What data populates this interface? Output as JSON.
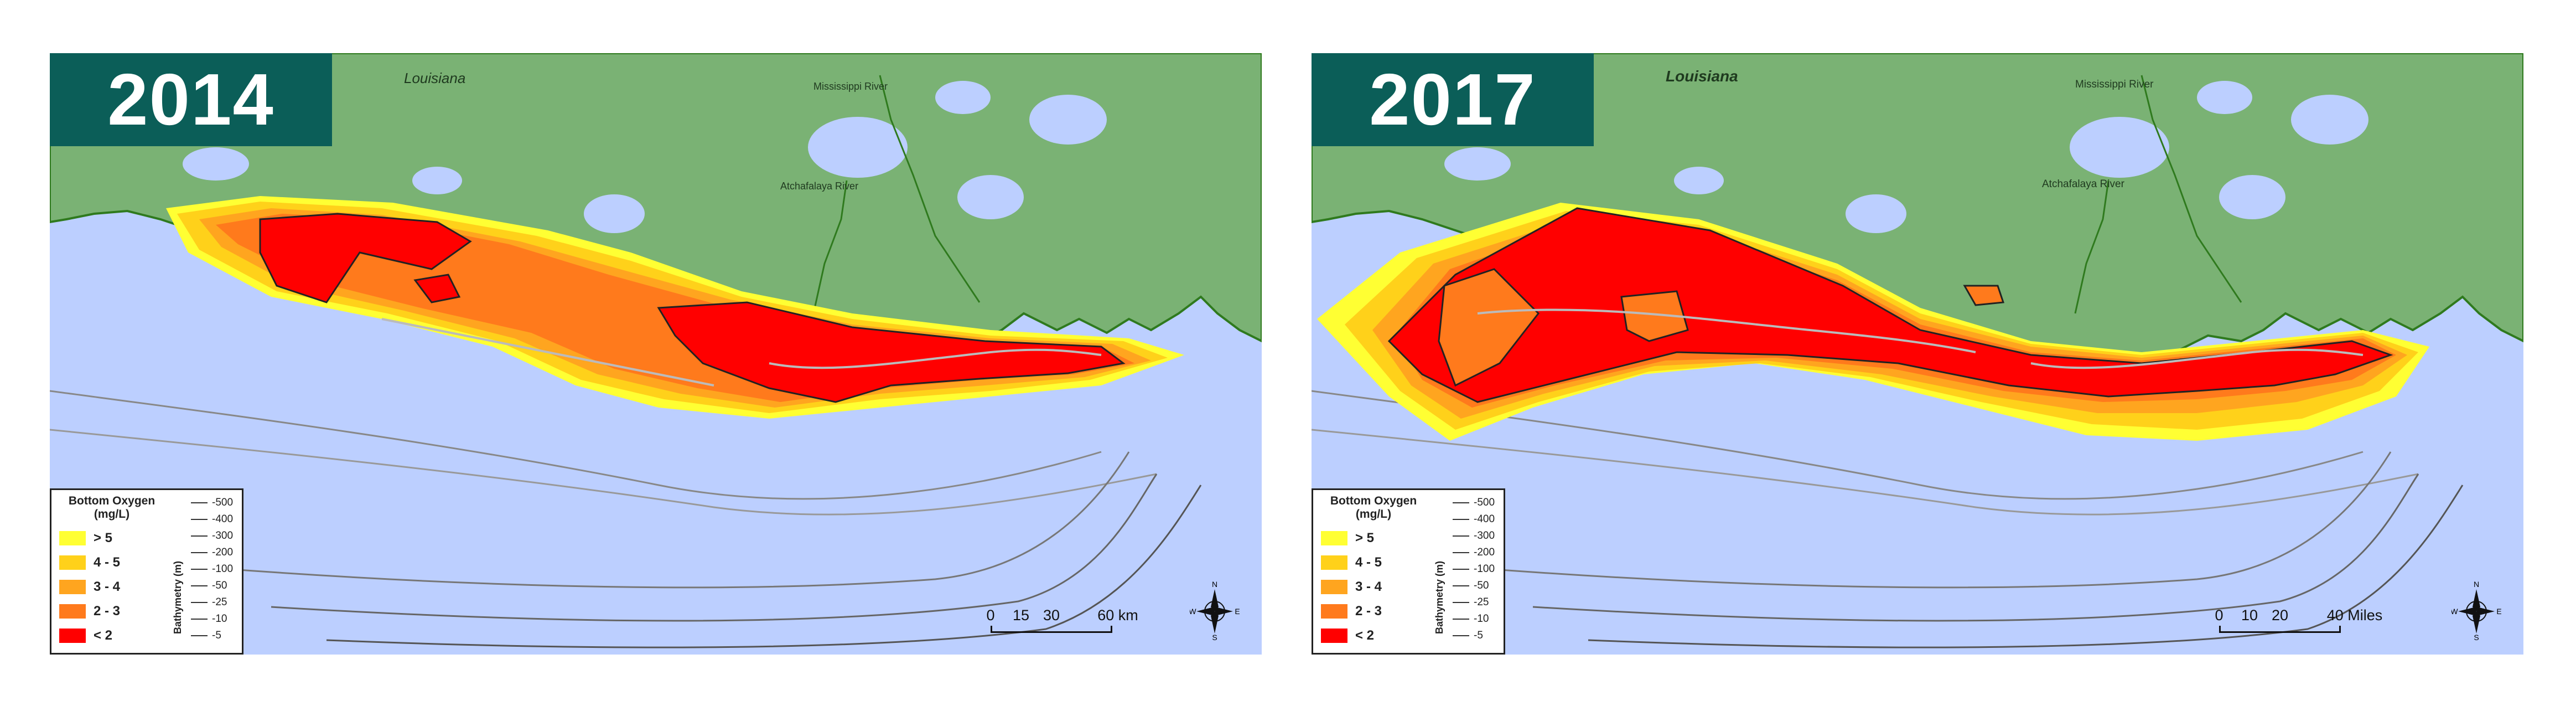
{
  "colors": {
    "land": "#7ab274",
    "land_edge": "#2f7a1e",
    "water": "#bccfff",
    "badge": "#0b5e58",
    "oxygen_gt5": "#ffff33",
    "oxygen_4_5": "#ffd11a",
    "oxygen_3_4": "#ffa51f",
    "oxygen_2_3": "#ff7a1c",
    "oxygen_lt2": "#ff0000"
  },
  "panels": [
    {
      "year": "2014",
      "state_label": "Louisiana",
      "river_labels": [
        "Mississippi River",
        "Atchafalaya River"
      ],
      "legend": {
        "title": "Bottom Oxygen",
        "unit": "(mg/L)",
        "oxygen_classes": [
          {
            "label": "> 5",
            "color": "#ffff33"
          },
          {
            "label": "4 - 5",
            "color": "#ffd11a"
          },
          {
            "label": "3 - 4",
            "color": "#ffa51f"
          },
          {
            "label": "2 - 3",
            "color": "#ff7a1c"
          },
          {
            "label": "< 2",
            "color": "#ff0000"
          }
        ],
        "bathymetry_axis": "Bathymetry (m)",
        "bathymetry_values": [
          "-500",
          "-400",
          "-300",
          "-200",
          "-100",
          "-50",
          "-25",
          "-10",
          "-5"
        ]
      },
      "scale_bar": {
        "ticks": [
          "0",
          "15",
          "30",
          "60 km"
        ]
      },
      "compass": {
        "n": "N",
        "s": "S",
        "e": "E",
        "w": "W"
      }
    },
    {
      "year": "2017",
      "state_label": "Louisiana",
      "river_labels": [
        "Mississippi River",
        "Atchafalaya River"
      ],
      "legend": {
        "title": "Bottom Oxygen",
        "unit": "(mg/L)",
        "oxygen_classes": [
          {
            "label": "> 5",
            "color": "#ffff33"
          },
          {
            "label": "4 - 5",
            "color": "#ffd11a"
          },
          {
            "label": "3 - 4",
            "color": "#ffa51f"
          },
          {
            "label": "2 - 3",
            "color": "#ff7a1c"
          },
          {
            "label": "< 2",
            "color": "#ff0000"
          }
        ],
        "bathymetry_axis": "Bathymetry (m)",
        "bathymetry_values": [
          "-500",
          "-400",
          "-300",
          "-200",
          "-100",
          "-50",
          "-25",
          "-10",
          "-5"
        ]
      },
      "scale_bar": {
        "ticks": [
          "0",
          "10",
          "20",
          "40 Miles"
        ]
      },
      "compass": {
        "n": "N",
        "s": "S",
        "e": "E",
        "w": "W"
      }
    }
  ]
}
